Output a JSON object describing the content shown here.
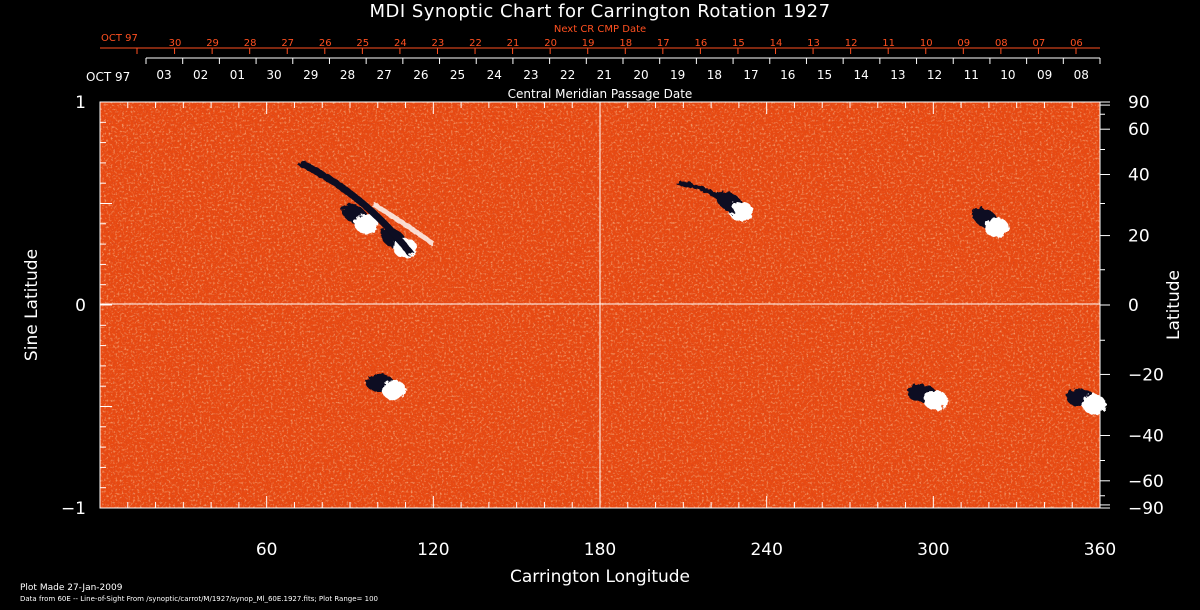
{
  "chart_data": {
    "type": "heatmap",
    "title": "MDI Synoptic Chart for Carrington Rotation 1927",
    "xlabel": "Carrington Longitude",
    "ylabel_left": "Sine Latitude",
    "ylabel_right": "Latitude",
    "xlim": [
      0,
      360
    ],
    "ylim": [
      -1,
      1
    ],
    "x_ticks": [
      60,
      120,
      180,
      240,
      300,
      360
    ],
    "y_ticks_left": [
      {
        "value": 1,
        "label": "1"
      },
      {
        "value": 0,
        "label": "0"
      },
      {
        "value": -1,
        "label": "−1"
      }
    ],
    "y_ticks_right": [
      90,
      60,
      40,
      20,
      0,
      -20,
      -40,
      -60,
      -90
    ],
    "top_axis": {
      "label": "Central Meridian Passage Date",
      "month_label": "OCT 97",
      "dates": [
        "03",
        "02",
        "01",
        "30",
        "29",
        "28",
        "27",
        "26",
        "25",
        "24",
        "23",
        "22",
        "21",
        "20",
        "19",
        "18",
        "17",
        "16",
        "15",
        "14",
        "13",
        "12",
        "11",
        "10",
        "09",
        "08"
      ]
    },
    "next_axis": {
      "label": "Next CR CMP Date",
      "month_label": "OCT 97",
      "dates": [
        "30",
        "29",
        "28",
        "27",
        "26",
        "25",
        "24",
        "23",
        "22",
        "21",
        "20",
        "19",
        "18",
        "17",
        "16",
        "15",
        "14",
        "13",
        "12",
        "11",
        "10",
        "09",
        "08",
        "07",
        "06"
      ]
    },
    "colors": {
      "background": "#e84a12",
      "negative": "#0a0820",
      "positive": "#ffffff",
      "grid": "#ffffff",
      "next_axis": "#ff5020"
    },
    "active_regions": [
      {
        "lon": 93,
        "lat": 0.42,
        "type": "bipolar"
      },
      {
        "lon": 107,
        "lat": 0.3,
        "type": "bipolar"
      },
      {
        "lon": 228,
        "lat": 0.48,
        "type": "bipolar"
      },
      {
        "lon": 320,
        "lat": 0.4,
        "type": "bipolar"
      },
      {
        "lon": 103,
        "lat": -0.4,
        "type": "bipolar"
      },
      {
        "lon": 298,
        "lat": -0.45,
        "type": "bipolar"
      },
      {
        "lon": 355,
        "lat": -0.47,
        "type": "bipolar"
      }
    ]
  },
  "footer": {
    "plot_made": "Plot Made 27-Jan-2009",
    "source": "Data from 60E -- Line-of-Sight From /synoptic/carrot/M/1927/synop_Ml_60E.1927.fits; Plot Range=  100"
  }
}
